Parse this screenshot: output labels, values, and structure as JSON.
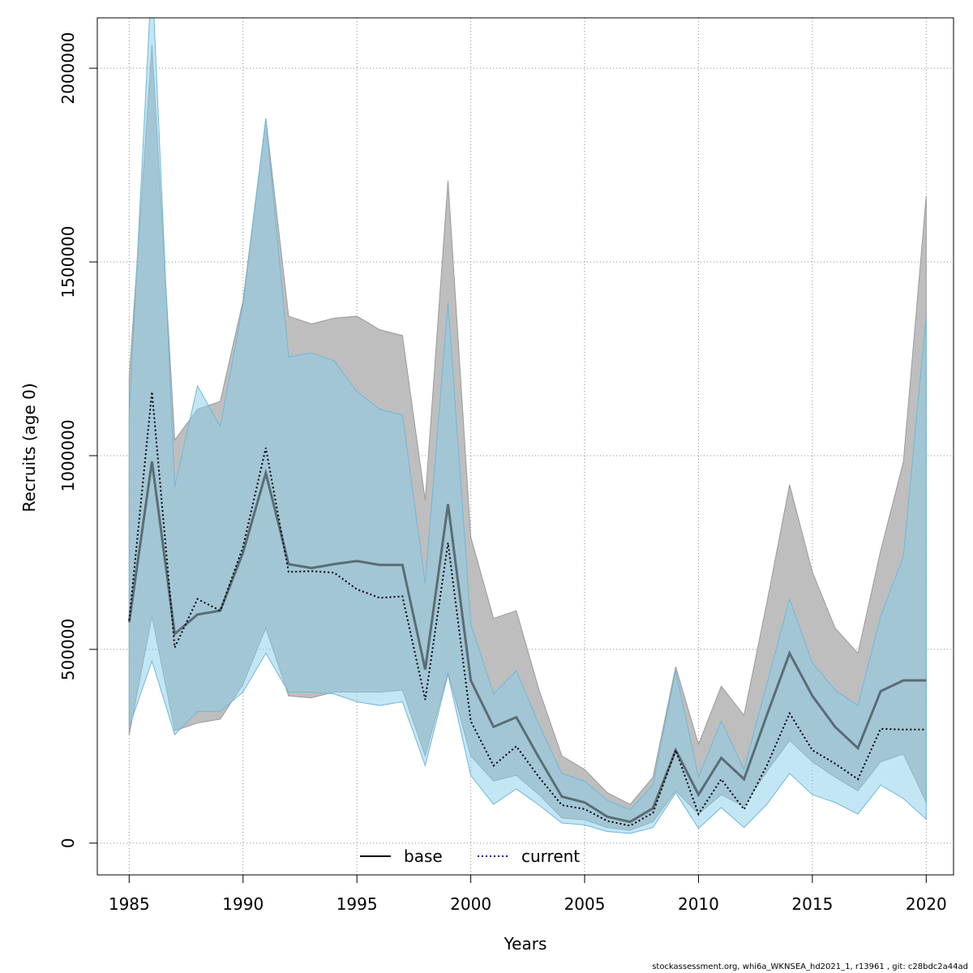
{
  "footer_text": "stockassessment.org, whi6a_WKNSEA_hd2021_1, r13961 , git: c28bdc2a44ad",
  "chart_data": {
    "type": "line",
    "xlabel": "Years",
    "ylabel": "Recruits (age 0)",
    "xlim": [
      1983.6,
      2021.2
    ],
    "ylim": [
      -82000,
      2130000
    ],
    "x_ticks": [
      1985,
      1990,
      1995,
      2000,
      2005,
      2010,
      2015,
      2020
    ],
    "x_tick_labels": [
      "1985",
      "1990",
      "1995",
      "2000",
      "2005",
      "2010",
      "2015",
      "2020"
    ],
    "y_ticks": [
      0,
      500000,
      1000000,
      1500000,
      2000000
    ],
    "y_tick_labels": [
      "0",
      "500000",
      "1000000",
      "1500000",
      "2000000"
    ],
    "grid": true,
    "legend": {
      "position": "bottom-center",
      "entries": [
        "base",
        "current"
      ]
    },
    "colors": {
      "base_band": "#bebebe",
      "current_band": "#87ceeb",
      "base_line": "#000000",
      "current_line": "#00008b"
    },
    "x": [
      1985,
      1986,
      1987,
      1988,
      1989,
      1990,
      1991,
      1992,
      1993,
      1994,
      1995,
      1996,
      1997,
      1998,
      1999,
      2000,
      2001,
      2002,
      2003,
      2004,
      2005,
      2006,
      2007,
      2008,
      2009,
      2010,
      2011,
      2012,
      2013,
      2014,
      2015,
      2016,
      2017,
      2018,
      2019,
      2020
    ],
    "series": [
      {
        "name": "base",
        "style": "solid",
        "values": [
          570000,
          985000,
          540000,
          590000,
          600000,
          750000,
          955000,
          720000,
          710000,
          720000,
          728000,
          718000,
          718000,
          448000,
          875000,
          420000,
          300000,
          325000,
          220000,
          120000,
          105000,
          68000,
          55000,
          90000,
          240000,
          125000,
          220000,
          165000,
          330000,
          490000,
          380000,
          300000,
          245000,
          392000,
          420000,
          420000
        ],
        "lower": [
          280000,
          585000,
          290000,
          310000,
          320000,
          410000,
          555000,
          380000,
          375000,
          390000,
          390000,
          390000,
          395000,
          225000,
          440000,
          225000,
          160000,
          175000,
          125000,
          65000,
          60000,
          40000,
          33000,
          55000,
          135000,
          75000,
          125000,
          95000,
          185000,
          265000,
          210000,
          170000,
          135000,
          210000,
          230000,
          105000
        ],
        "upper": [
          1200000,
          2060000,
          1040000,
          1120000,
          1140000,
          1400000,
          1870000,
          1360000,
          1340000,
          1355000,
          1360000,
          1325000,
          1310000,
          885000,
          1710000,
          790000,
          580000,
          600000,
          395000,
          225000,
          190000,
          130000,
          100000,
          170000,
          455000,
          255000,
          405000,
          330000,
          620000,
          925000,
          700000,
          555000,
          490000,
          755000,
          985000,
          1670000
        ]
      },
      {
        "name": "current",
        "style": "dotted",
        "values": [
          575000,
          1165000,
          505000,
          630000,
          600000,
          765000,
          1020000,
          700000,
          702000,
          698000,
          655000,
          633000,
          637000,
          370000,
          775000,
          315000,
          200000,
          250000,
          170000,
          98000,
          88000,
          57000,
          45000,
          78000,
          240000,
          75000,
          165000,
          87000,
          200000,
          335000,
          240000,
          205000,
          165000,
          295000,
          293000,
          293000
        ],
        "lower": [
          300000,
          470000,
          280000,
          340000,
          340000,
          390000,
          490000,
          390000,
          390000,
          385000,
          365000,
          355000,
          365000,
          200000,
          435000,
          175000,
          100000,
          140000,
          98000,
          52000,
          47000,
          30000,
          25000,
          40000,
          130000,
          38000,
          92000,
          40000,
          100000,
          180000,
          125000,
          105000,
          75000,
          150000,
          115000,
          62000
        ],
        "upper": [
          1100000,
          2250000,
          920000,
          1180000,
          1075000,
          1390000,
          1870000,
          1255000,
          1265000,
          1245000,
          1165000,
          1120000,
          1105000,
          670000,
          1395000,
          565000,
          385000,
          445000,
          305000,
          180000,
          160000,
          110000,
          86000,
          150000,
          445000,
          170000,
          315000,
          190000,
          410000,
          630000,
          465000,
          395000,
          355000,
          585000,
          740000,
          1360000
        ]
      }
    ]
  }
}
